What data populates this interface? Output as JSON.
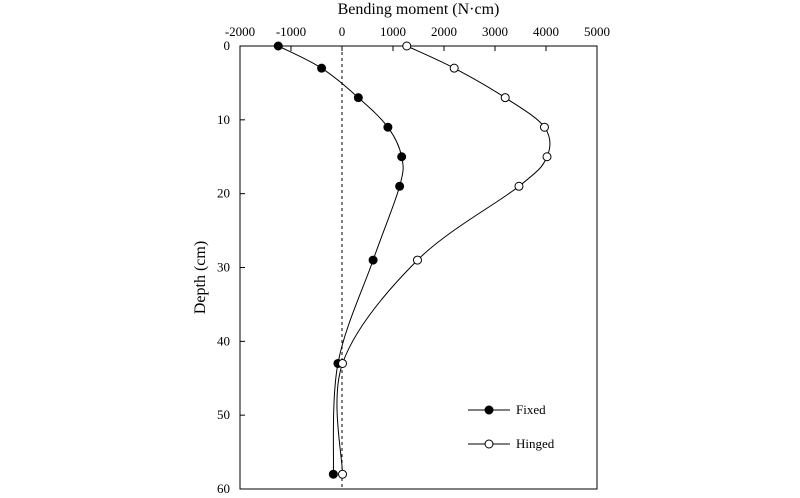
{
  "chart_data": {
    "type": "line",
    "title": "",
    "xlabel": "Bending moment (N·cm)",
    "ylabel": "Depth (cm)",
    "xlim": [
      -2000,
      5000
    ],
    "ylim": [
      0,
      60
    ],
    "y_inverted": true,
    "x_axis_position": "top",
    "x_ticks": [
      -2000,
      -1000,
      0,
      1000,
      2000,
      3000,
      4000,
      5000
    ],
    "y_ticks": [
      0,
      10,
      20,
      30,
      40,
      50,
      60
    ],
    "x_tick_labels": [
      "-2000",
      "-1000",
      "0",
      "1000",
      "2000",
      "3000",
      "4000",
      "5000"
    ],
    "y_tick_labels": [
      "0",
      "10",
      "20",
      "30",
      "40",
      "50",
      "60"
    ],
    "reference_line": {
      "x": 0,
      "style": "dashed"
    },
    "legend_position": "bottom-right",
    "series": [
      {
        "name": "Fixed",
        "marker": "filled-circle",
        "color": "#000000",
        "points": [
          {
            "x": -1250,
            "y": 0
          },
          {
            "x": -400,
            "y": 3
          },
          {
            "x": 320,
            "y": 7
          },
          {
            "x": 900,
            "y": 11
          },
          {
            "x": 1170,
            "y": 15
          },
          {
            "x": 1130,
            "y": 19
          },
          {
            "x": 610,
            "y": 29
          },
          {
            "x": -80,
            "y": 43
          },
          {
            "x": -170,
            "y": 58
          }
        ]
      },
      {
        "name": "Hinged",
        "marker": "open-circle",
        "color": "#000000",
        "points": [
          {
            "x": 1270,
            "y": 0
          },
          {
            "x": 2200,
            "y": 3
          },
          {
            "x": 3200,
            "y": 7
          },
          {
            "x": 3970,
            "y": 11
          },
          {
            "x": 4020,
            "y": 15
          },
          {
            "x": 3470,
            "y": 19
          },
          {
            "x": 1480,
            "y": 29
          },
          {
            "x": 10,
            "y": 43
          },
          {
            "x": 10,
            "y": 58
          }
        ]
      }
    ]
  }
}
